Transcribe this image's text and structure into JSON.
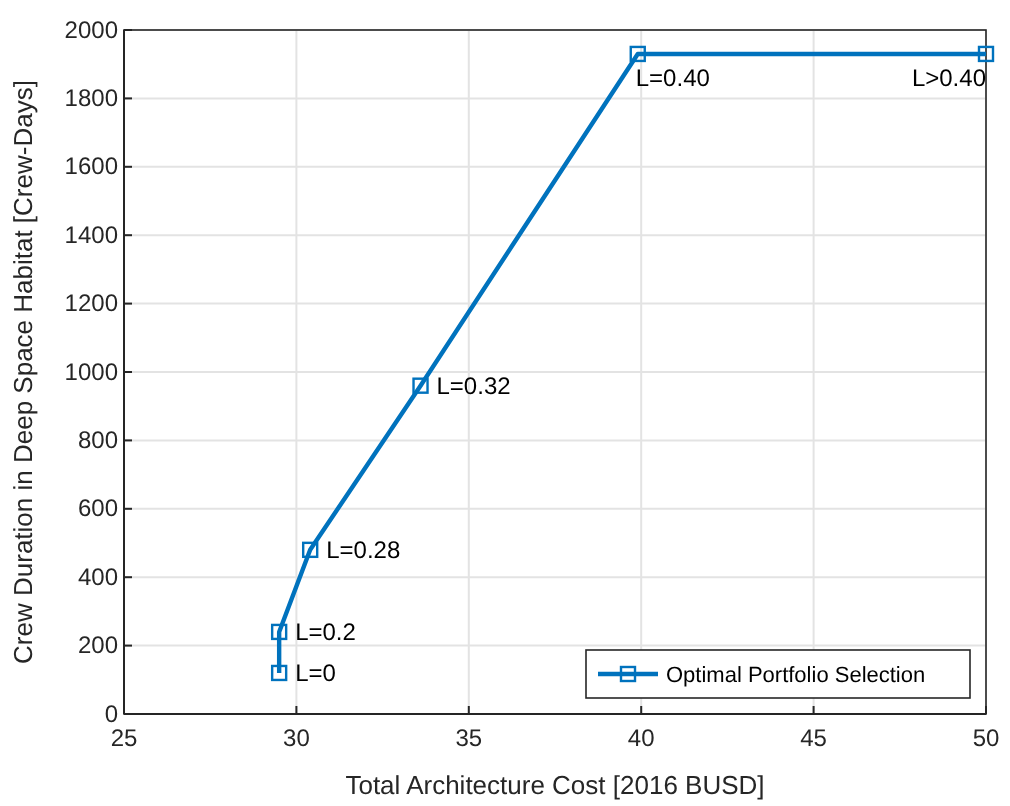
{
  "chart_data": {
    "type": "line",
    "xlabel": "Total Architecture Cost [2016 BUSD]",
    "ylabel": "Crew Duration in Deep Space Habitat [Crew-Days]",
    "x": [
      29.5,
      29.5,
      30.4,
      33.6,
      39.9,
      50
    ],
    "series": [
      {
        "name": "Optimal Portfolio Selection",
        "color": "#0072bd",
        "values": [
          120,
          240,
          480,
          960,
          1930,
          1930
        ]
      }
    ],
    "xlim": [
      25,
      50
    ],
    "xticks": [
      25,
      30,
      35,
      40,
      45,
      50
    ],
    "ylim": [
      0,
      2000
    ],
    "yticks": [
      0,
      200,
      400,
      600,
      800,
      1000,
      1200,
      1400,
      1600,
      1800,
      2000
    ],
    "grid": true,
    "legend": "bottom right",
    "marker": "square",
    "line_style": "solid",
    "annotations": [
      {
        "text": "L=0",
        "x": 29.5,
        "y": 120
      },
      {
        "text": "L=0.2",
        "x": 29.5,
        "y": 240
      },
      {
        "text": "L=0.28",
        "x": 30.4,
        "y": 480
      },
      {
        "text": "L=0.32",
        "x": 33.6,
        "y": 960
      },
      {
        "text": "L=0.40",
        "x": 39.9,
        "y": 1930
      },
      {
        "text": "L>0.40",
        "x": 50,
        "y": 1930
      }
    ]
  }
}
